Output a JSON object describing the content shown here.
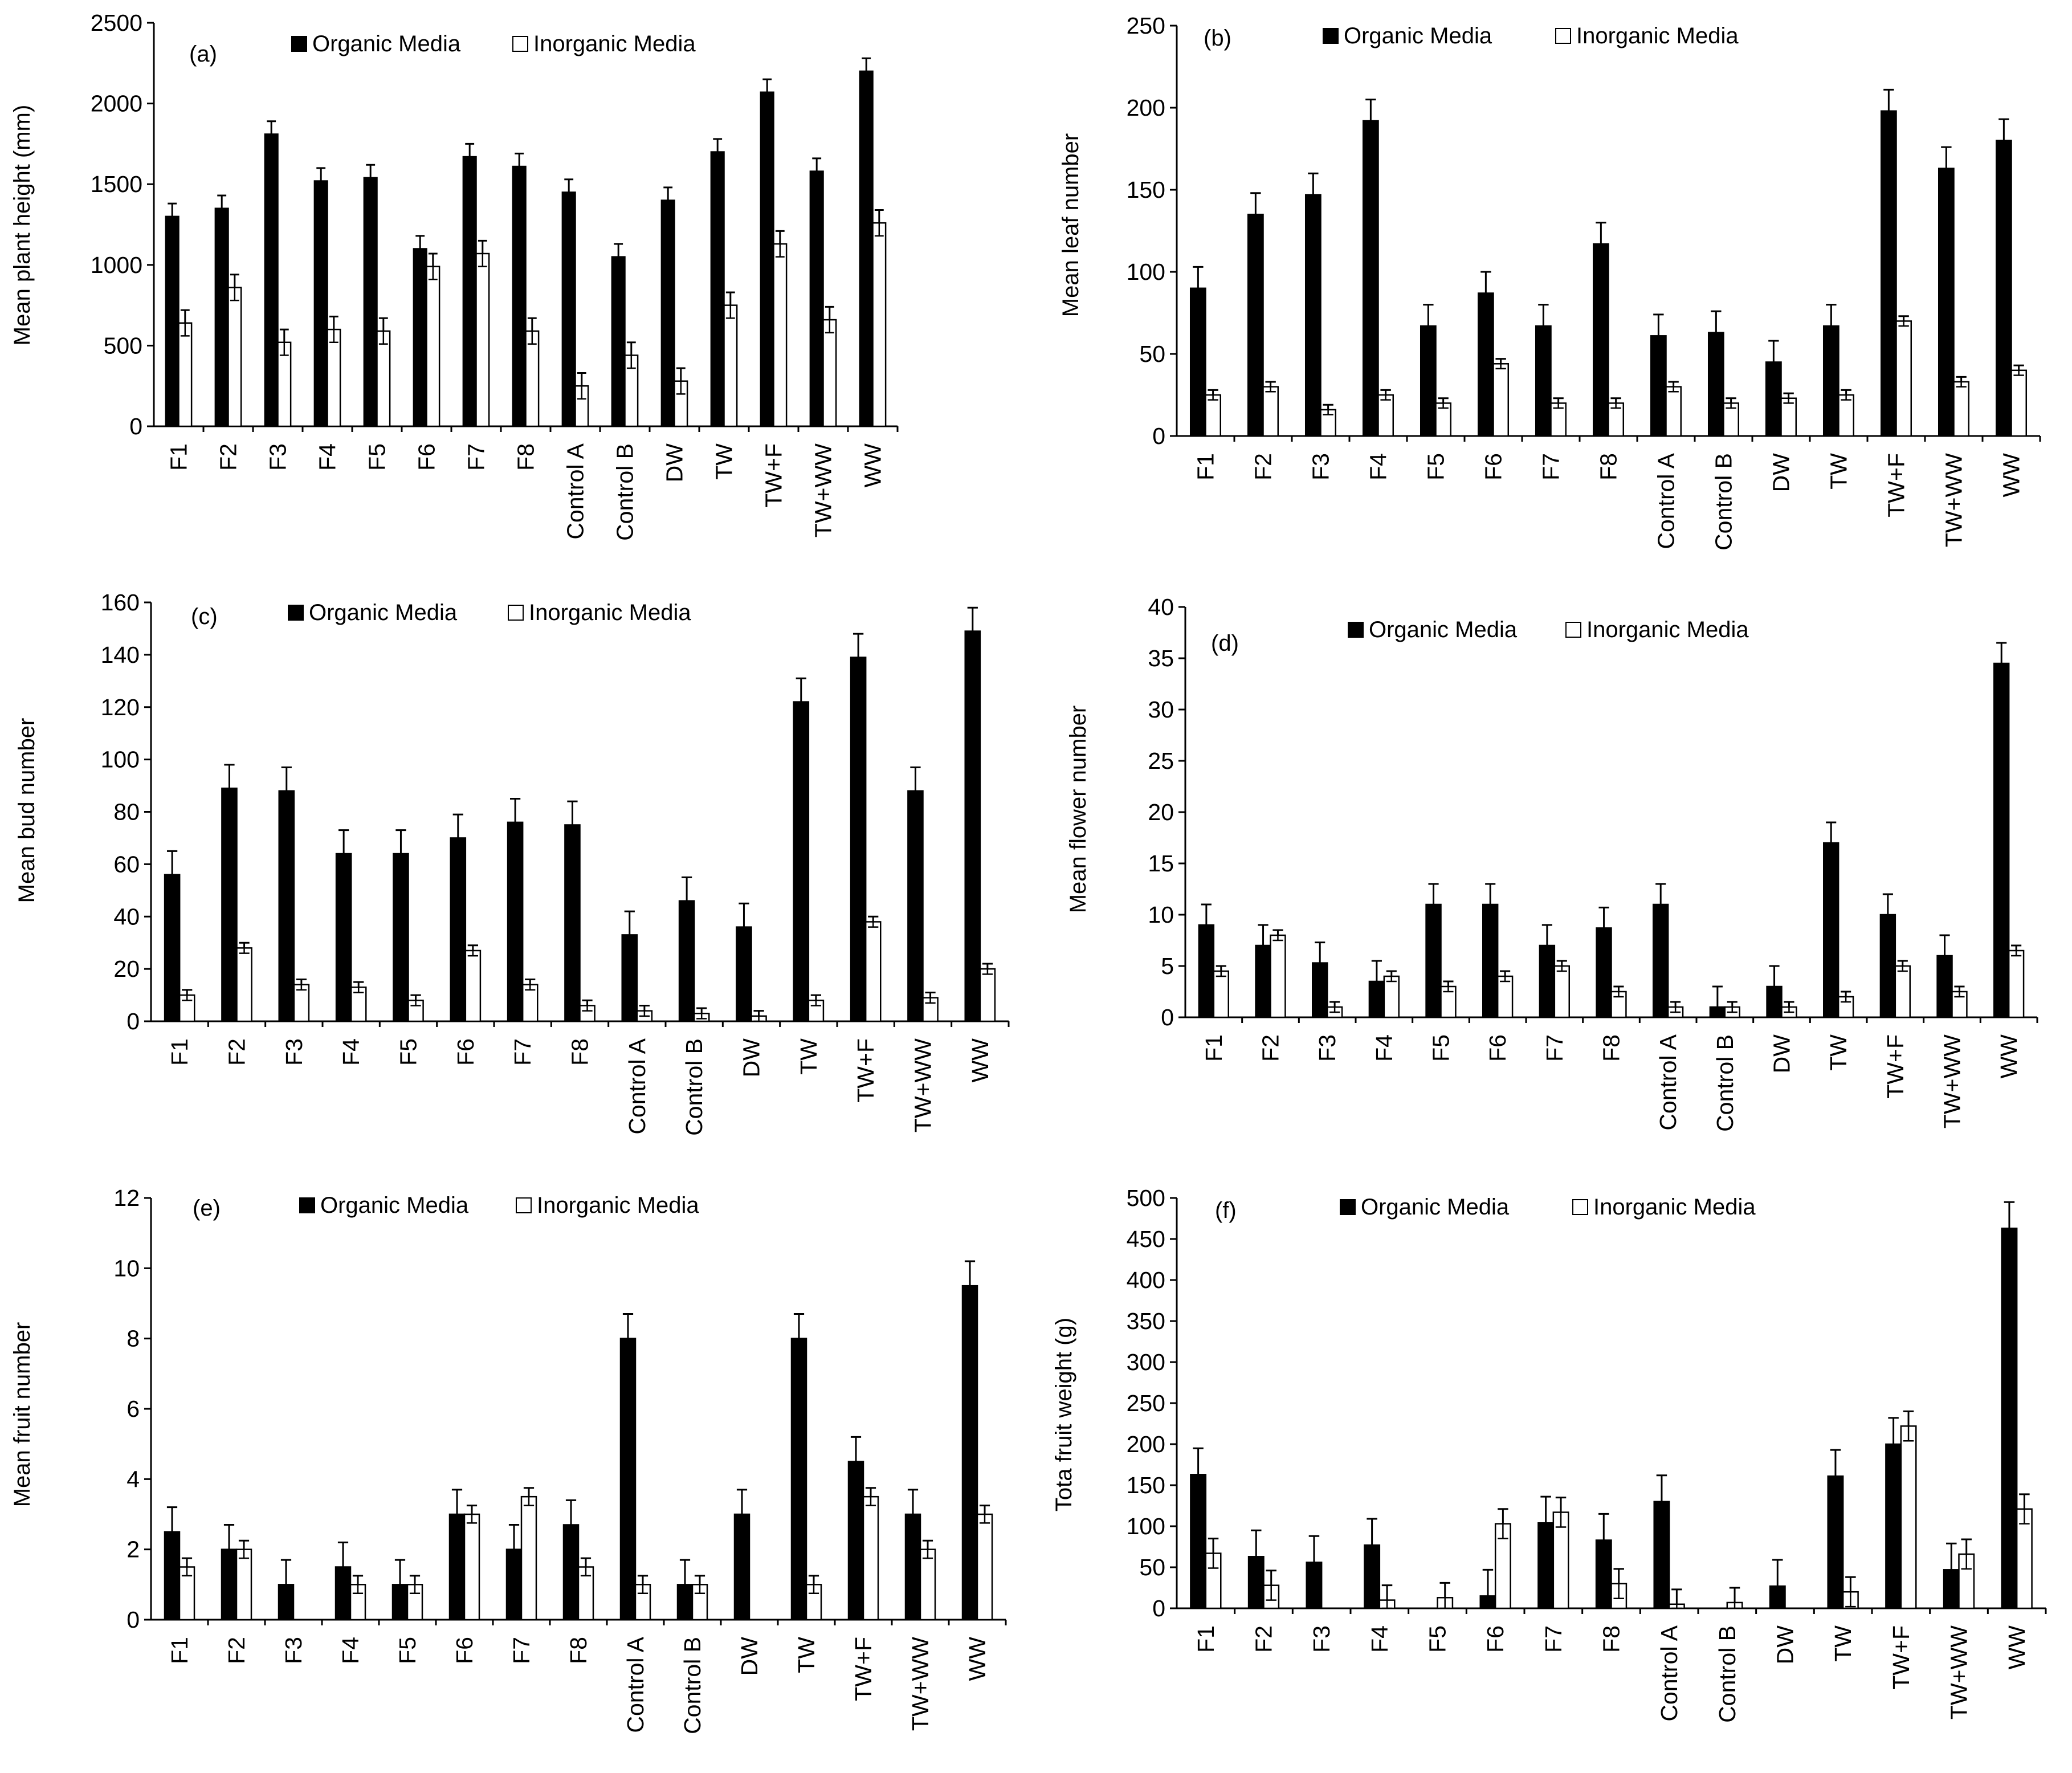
{
  "colors": {
    "organic": "#000000",
    "inorganic": "#ffffff",
    "axis": "#000000"
  },
  "chart_data": [
    {
      "type": "bar",
      "panel": "(a)",
      "ylabel": "Mean plant height (mm)",
      "ylim": [
        0,
        2500
      ],
      "yticks": [
        0,
        500,
        1000,
        1500,
        2000,
        2500
      ],
      "legend": [
        "Organic Media",
        "Inorganic Media"
      ],
      "categories": [
        "F1",
        "F2",
        "F3",
        "F4",
        "F5",
        "F6",
        "F7",
        "F8",
        "Control A",
        "Control B",
        "DW",
        "TW",
        "TW+F",
        "TW+WW",
        "WW"
      ],
      "series": [
        {
          "name": "Organic Media",
          "values": [
            1300,
            1350,
            1810,
            1520,
            1540,
            1100,
            1670,
            1610,
            1450,
            1050,
            1400,
            1700,
            2070,
            1580,
            2200
          ],
          "errors": [
            80,
            80,
            80,
            80,
            80,
            80,
            80,
            80,
            80,
            80,
            80,
            80,
            80,
            80,
            80
          ]
        },
        {
          "name": "Inorganic Media",
          "values": [
            640,
            860,
            520,
            600,
            590,
            990,
            1070,
            590,
            250,
            440,
            280,
            750,
            1130,
            660,
            1260
          ],
          "errors": [
            80,
            80,
            80,
            80,
            80,
            80,
            80,
            80,
            80,
            80,
            80,
            80,
            80,
            80,
            80
          ]
        }
      ]
    },
    {
      "type": "bar",
      "panel": "(b)",
      "ylabel": "Mean leaf number",
      "ylim": [
        0,
        250
      ],
      "yticks": [
        0,
        50,
        100,
        150,
        200,
        250
      ],
      "legend": [
        "Organic Media",
        "Inorganic Media"
      ],
      "categories": [
        "F1",
        "F2",
        "F3",
        "F4",
        "F5",
        "F6",
        "F7",
        "F8",
        "Control A",
        "Control B",
        "DW",
        "TW",
        "TW+F",
        "TW+WW",
        "WW"
      ],
      "series": [
        {
          "name": "Organic Media",
          "values": [
            90,
            135,
            147,
            192,
            67,
            87,
            67,
            117,
            61,
            63,
            45,
            67,
            198,
            163,
            180
          ],
          "errors": [
            13,
            13,
            13,
            13,
            13,
            13,
            13,
            13,
            13,
            13,
            13,
            13,
            13,
            13,
            13
          ]
        },
        {
          "name": "Inorganic Media",
          "values": [
            25,
            30,
            16,
            25,
            20,
            44,
            20,
            20,
            30,
            20,
            23,
            25,
            70,
            33,
            40
          ],
          "errors": [
            3,
            3,
            3,
            3,
            3,
            3,
            3,
            3,
            3,
            3,
            3,
            3,
            3,
            3,
            3
          ]
        }
      ]
    },
    {
      "type": "bar",
      "panel": "(c)",
      "ylabel": "Mean bud number",
      "ylim": [
        0,
        160
      ],
      "yticks": [
        0,
        20,
        40,
        60,
        80,
        100,
        120,
        140,
        160
      ],
      "legend": [
        "Organic Media",
        "Inorganic Media"
      ],
      "categories": [
        "F1",
        "F2",
        "F3",
        "F4",
        "F5",
        "F6",
        "F7",
        "F8",
        "Control A",
        "Control B",
        "DW",
        "TW",
        "TW+F",
        "TW+WW",
        "WW"
      ],
      "series": [
        {
          "name": "Organic Media",
          "values": [
            56,
            89,
            88,
            64,
            64,
            70,
            76,
            75,
            33,
            46,
            36,
            122,
            139,
            88,
            149
          ],
          "errors": [
            9,
            9,
            9,
            9,
            9,
            9,
            9,
            9,
            9,
            9,
            9,
            9,
            9,
            9,
            9
          ]
        },
        {
          "name": "Inorganic Media",
          "values": [
            10,
            28,
            14,
            13,
            8,
            27,
            14,
            6,
            4,
            3,
            2,
            8,
            38,
            9,
            20
          ],
          "errors": [
            2,
            2,
            2,
            2,
            2,
            2,
            2,
            2,
            2,
            2,
            2,
            2,
            2,
            2,
            2
          ]
        }
      ]
    },
    {
      "type": "bar",
      "panel": "(d)",
      "ylabel": "Mean flower number",
      "ylim": [
        0,
        40
      ],
      "yticks": [
        0,
        5,
        10,
        15,
        20,
        25,
        30,
        35,
        40
      ],
      "legend": [
        "Organic Media",
        "Inorganic Media"
      ],
      "categories": [
        "F1",
        "F2",
        "F3",
        "F4",
        "F5",
        "F6",
        "F7",
        "F8",
        "Control A",
        "Control B",
        "DW",
        "TW",
        "TW+F",
        "TW+WW",
        "WW"
      ],
      "series": [
        {
          "name": "Organic Media",
          "values": [
            9,
            7,
            5.3,
            3.5,
            11,
            11,
            7,
            8.7,
            11,
            1,
            3,
            17,
            10,
            6,
            34.5
          ],
          "errors": [
            2,
            2,
            2,
            2,
            2,
            2,
            2,
            2,
            2,
            2,
            2,
            2,
            2,
            2,
            2
          ]
        },
        {
          "name": "Inorganic Media",
          "values": [
            4.5,
            8,
            1,
            4,
            3,
            4,
            5,
            2.5,
            1,
            1,
            1,
            2,
            5,
            2.5,
            6.5
          ],
          "errors": [
            0.5,
            0.5,
            0.5,
            0.5,
            0.5,
            0.5,
            0.5,
            0.5,
            0.5,
            0.5,
            0.5,
            0.5,
            0.5,
            0.5,
            0.5
          ]
        }
      ]
    },
    {
      "type": "bar",
      "panel": "(e)",
      "ylabel": "Mean fruit number",
      "ylim": [
        0,
        12
      ],
      "yticks": [
        0,
        2,
        4,
        6,
        8,
        10,
        12
      ],
      "legend": [
        "Organic Media",
        "Inorganic Media"
      ],
      "categories": [
        "F1",
        "F2",
        "F3",
        "F4",
        "F5",
        "F6",
        "F7",
        "F8",
        "Control A",
        "Control B",
        "DW",
        "TW",
        "TW+F",
        "TW+WW",
        "WW"
      ],
      "series": [
        {
          "name": "Organic Media",
          "values": [
            2.5,
            2,
            1,
            1.5,
            1,
            3,
            2,
            2.7,
            8,
            1,
            3,
            8,
            4.5,
            3,
            9.5
          ],
          "errors": [
            0.7,
            0.7,
            0.7,
            0.7,
            0.7,
            0.7,
            0.7,
            0.7,
            0.7,
            0.7,
            0.7,
            0.7,
            0.7,
            0.7,
            0.7
          ]
        },
        {
          "name": "Inorganic Media",
          "values": [
            1.5,
            2,
            0,
            1,
            1,
            3,
            3.5,
            1.5,
            1,
            1,
            0,
            1,
            3.5,
            2,
            3
          ],
          "errors": [
            0.25,
            0.25,
            0,
            0.25,
            0.25,
            0.25,
            0.25,
            0.25,
            0.25,
            0.25,
            0,
            0.25,
            0.25,
            0.25,
            0.25
          ]
        }
      ]
    },
    {
      "type": "bar",
      "panel": "(f)",
      "ylabel": "Tota fruit weight (g)",
      "ylim": [
        0,
        500
      ],
      "yticks": [
        0,
        50,
        100,
        150,
        200,
        250,
        300,
        350,
        400,
        450,
        500
      ],
      "legend": [
        "Organic Media",
        "Inorganic Media"
      ],
      "categories": [
        "F1",
        "F2",
        "F3",
        "F4",
        "F5",
        "F6",
        "F7",
        "F8",
        "Control A",
        "Control B",
        "DW",
        "TW",
        "TW+F",
        "TW+WW",
        "WW"
      ],
      "series": [
        {
          "name": "Organic Media",
          "values": [
            163,
            63,
            56,
            77,
            0,
            15,
            104,
            83,
            130,
            0,
            27,
            161,
            200,
            47,
            463
          ],
          "errors": [
            32,
            32,
            32,
            32,
            0,
            32,
            32,
            32,
            32,
            0,
            32,
            32,
            32,
            32,
            32
          ]
        },
        {
          "name": "Inorganic Media",
          "values": [
            67,
            28,
            0,
            10,
            13,
            103,
            117,
            30,
            5,
            7,
            0,
            20,
            222,
            66,
            121
          ],
          "errors": [
            18,
            18,
            0,
            18,
            18,
            18,
            18,
            18,
            18,
            18,
            0,
            18,
            18,
            18,
            18
          ]
        }
      ]
    }
  ]
}
